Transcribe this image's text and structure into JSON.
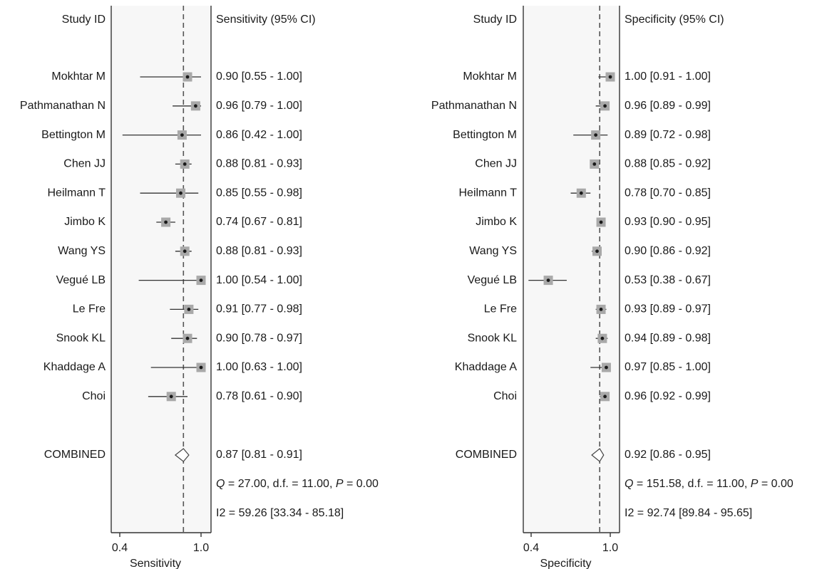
{
  "chart_data": [
    {
      "type": "forest",
      "header_label": "Study ID",
      "stat_header": "Sensitivity (95% CI)",
      "xlabel": "Sensitivity",
      "xticks": [
        "0.4",
        "1.0"
      ],
      "xlim": [
        0.4,
        1.0
      ],
      "combined_line": 0.87,
      "studies": [
        {
          "name": "Mokhtar M",
          "est": 0.9,
          "lo": 0.55,
          "hi": 1.0,
          "label": "0.90 [0.55 - 1.00]"
        },
        {
          "name": "Pathmanathan N",
          "est": 0.96,
          "lo": 0.79,
          "hi": 1.0,
          "label": "0.96 [0.79 - 1.00]"
        },
        {
          "name": "Bettington M",
          "est": 0.86,
          "lo": 0.42,
          "hi": 1.0,
          "label": "0.86 [0.42 - 1.00]"
        },
        {
          "name": "Chen JJ",
          "est": 0.88,
          "lo": 0.81,
          "hi": 0.93,
          "label": "0.88 [0.81 - 0.93]"
        },
        {
          "name": "Heilmann T",
          "est": 0.85,
          "lo": 0.55,
          "hi": 0.98,
          "label": "0.85 [0.55 - 0.98]"
        },
        {
          "name": "Jimbo K",
          "est": 0.74,
          "lo": 0.67,
          "hi": 0.81,
          "label": "0.74 [0.67 - 0.81]"
        },
        {
          "name": "Wang YS",
          "est": 0.88,
          "lo": 0.81,
          "hi": 0.93,
          "label": "0.88 [0.81 - 0.93]"
        },
        {
          "name": "Vegué LB",
          "est": 1.0,
          "lo": 0.54,
          "hi": 1.0,
          "label": "1.00 [0.54 - 1.00]"
        },
        {
          "name": "Le Fre",
          "est": 0.91,
          "lo": 0.77,
          "hi": 0.98,
          "label": "0.91 [0.77 - 0.98]"
        },
        {
          "name": "Snook KL",
          "est": 0.9,
          "lo": 0.78,
          "hi": 0.97,
          "label": "0.90 [0.78 - 0.97]"
        },
        {
          "name": "Khaddage A",
          "est": 1.0,
          "lo": 0.63,
          "hi": 1.0,
          "label": "1.00 [0.63 - 1.00]"
        },
        {
          "name": "Choi",
          "est": 0.78,
          "lo": 0.61,
          "hi": 0.9,
          "label": "0.78 [0.61 - 0.90]"
        }
      ],
      "combined": {
        "name": "COMBINED",
        "est": 0.87,
        "lo": 0.81,
        "hi": 0.91,
        "label": "0.87 [0.81 - 0.91]"
      },
      "heterogeneity": {
        "q": "27.00",
        "df": "11.00",
        "p": "0.00",
        "i2": "I2 = 59.26 [33.34 - 85.18]"
      }
    },
    {
      "type": "forest",
      "header_label": "Study ID",
      "stat_header": "Specificity (95% CI)",
      "xlabel": "Specificity",
      "xticks": [
        "0.4",
        "1.0"
      ],
      "xlim": [
        0.4,
        1.0
      ],
      "combined_line": 0.92,
      "studies": [
        {
          "name": "Mokhtar M",
          "est": 1.0,
          "lo": 0.91,
          "hi": 1.0,
          "label": "1.00 [0.91 - 1.00]"
        },
        {
          "name": "Pathmanathan N",
          "est": 0.96,
          "lo": 0.89,
          "hi": 0.99,
          "label": "0.96 [0.89 - 0.99]"
        },
        {
          "name": "Bettington M",
          "est": 0.89,
          "lo": 0.72,
          "hi": 0.98,
          "label": "0.89 [0.72 - 0.98]"
        },
        {
          "name": "Chen JJ",
          "est": 0.88,
          "lo": 0.85,
          "hi": 0.92,
          "label": "0.88 [0.85 - 0.92]"
        },
        {
          "name": "Heilmann T",
          "est": 0.78,
          "lo": 0.7,
          "hi": 0.85,
          "label": "0.78 [0.70 - 0.85]"
        },
        {
          "name": "Jimbo K",
          "est": 0.93,
          "lo": 0.9,
          "hi": 0.95,
          "label": "0.93 [0.90 - 0.95]"
        },
        {
          "name": "Wang YS",
          "est": 0.9,
          "lo": 0.86,
          "hi": 0.92,
          "label": "0.90 [0.86 - 0.92]"
        },
        {
          "name": "Vegué LB",
          "est": 0.53,
          "lo": 0.38,
          "hi": 0.67,
          "label": "0.53 [0.38 - 0.67]"
        },
        {
          "name": "Le Fre",
          "est": 0.93,
          "lo": 0.89,
          "hi": 0.97,
          "label": "0.93 [0.89 - 0.97]"
        },
        {
          "name": "Snook KL",
          "est": 0.94,
          "lo": 0.89,
          "hi": 0.98,
          "label": "0.94 [0.89 - 0.98]"
        },
        {
          "name": "Khaddage A",
          "est": 0.97,
          "lo": 0.85,
          "hi": 1.0,
          "label": "0.97 [0.85 - 1.00]"
        },
        {
          "name": "Choi",
          "est": 0.96,
          "lo": 0.92,
          "hi": 0.99,
          "label": "0.96 [0.92 - 0.99]"
        }
      ],
      "combined": {
        "name": "COMBINED",
        "est": 0.92,
        "lo": 0.86,
        "hi": 0.95,
        "label": "0.92 [0.86 - 0.95]"
      },
      "heterogeneity": {
        "q": "151.58",
        "df": "11.00",
        "p": "0.00",
        "i2": "I2 = 92.74 [89.84 - 95.65]"
      }
    }
  ]
}
